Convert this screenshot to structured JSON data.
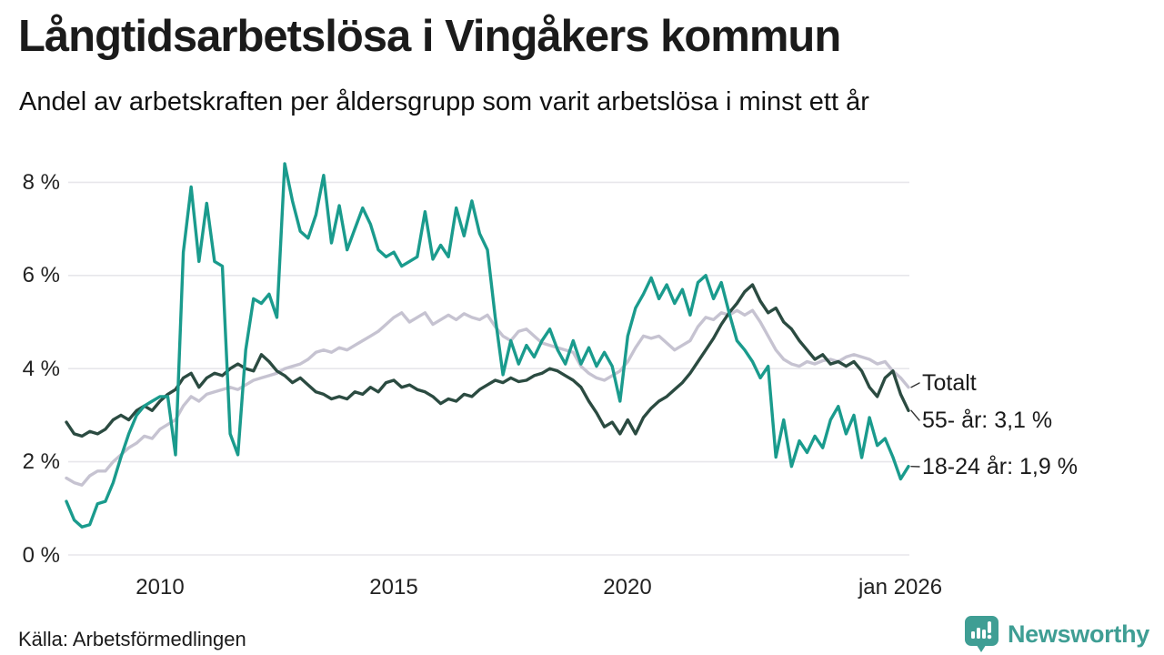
{
  "header": {
    "title": "Långtidsarbetslösa i Vingåkers kommun",
    "subtitle": "Andel av arbetskraften per åldersgrupp som varit arbetslösa i minst ett år"
  },
  "footer": {
    "source": "Källa: Arbetsförmedlingen",
    "brand": "Newsworthy",
    "brand_color": "#3f9e94",
    "logo_icon": "bar-chart-speech-bubble-icon"
  },
  "chart_data": {
    "type": "line",
    "title": "Långtidsarbetslösa i Vingåkers kommun",
    "subtitle": "Andel av arbetskraften per åldersgrupp som varit arbetslösa i minst ett år",
    "x_start": 2008.0,
    "x_end": 2026.08,
    "x_unit": "year (monthly data, sampled bimonthly)",
    "ylim": [
      0,
      8.6
    ],
    "grid": true,
    "grid_color": "#e7e6eb",
    "grid_y_values": [
      0,
      2,
      4,
      6,
      8
    ],
    "y_tick_labels": [
      "8 %",
      "6 %",
      "4 %",
      "2 %",
      "0 %"
    ],
    "x_tick_labels": [
      "2010",
      "2015",
      "2020",
      "jan 2026"
    ],
    "x_tick_years": [
      2010,
      2015,
      2020,
      2026.08
    ],
    "legend_position": "right-end-labels",
    "series": [
      {
        "name": "Totalt",
        "end_label": "Totalt",
        "color": "#c6c3d1",
        "last_value": 3.6,
        "values": [
          1.65,
          1.55,
          1.5,
          1.7,
          1.8,
          1.8,
          2.0,
          2.15,
          2.3,
          2.4,
          2.55,
          2.5,
          2.7,
          2.8,
          2.9,
          3.2,
          3.4,
          3.3,
          3.45,
          3.5,
          3.55,
          3.6,
          3.55,
          3.65,
          3.75,
          3.8,
          3.85,
          3.9,
          4.0,
          4.05,
          4.1,
          4.2,
          4.35,
          4.4,
          4.35,
          4.45,
          4.4,
          4.5,
          4.6,
          4.7,
          4.8,
          4.95,
          5.1,
          5.2,
          5.0,
          5.1,
          5.2,
          4.95,
          5.05,
          5.15,
          5.05,
          5.18,
          5.1,
          5.05,
          5.15,
          4.9,
          4.7,
          4.6,
          4.8,
          4.85,
          4.7,
          4.55,
          4.5,
          4.45,
          4.4,
          4.35,
          4.05,
          3.9,
          3.8,
          3.75,
          3.85,
          3.95,
          4.15,
          4.45,
          4.7,
          4.65,
          4.7,
          4.55,
          4.4,
          4.5,
          4.6,
          4.9,
          5.1,
          5.05,
          5.2,
          5.15,
          5.25,
          5.15,
          5.25,
          5.0,
          4.7,
          4.4,
          4.2,
          4.1,
          4.05,
          4.15,
          4.1,
          4.17,
          4.2,
          4.15,
          4.25,
          4.3,
          4.25,
          4.2,
          4.1,
          4.15,
          3.95,
          3.8,
          3.6
        ]
      },
      {
        "name": "55- år",
        "end_label": "55- år: 3,1 %",
        "color": "#2b4b41",
        "last_value": 3.1,
        "values": [
          2.85,
          2.6,
          2.55,
          2.65,
          2.6,
          2.7,
          2.9,
          3.0,
          2.9,
          3.1,
          3.2,
          3.1,
          3.3,
          3.45,
          3.55,
          3.8,
          3.9,
          3.6,
          3.8,
          3.9,
          3.85,
          4.0,
          4.1,
          4.0,
          3.95,
          4.3,
          4.15,
          3.95,
          3.85,
          3.7,
          3.8,
          3.65,
          3.5,
          3.45,
          3.35,
          3.4,
          3.35,
          3.5,
          3.45,
          3.6,
          3.5,
          3.7,
          3.75,
          3.6,
          3.65,
          3.55,
          3.5,
          3.4,
          3.25,
          3.35,
          3.3,
          3.45,
          3.4,
          3.55,
          3.65,
          3.75,
          3.7,
          3.8,
          3.72,
          3.75,
          3.85,
          3.9,
          4.0,
          3.95,
          3.85,
          3.75,
          3.6,
          3.3,
          3.05,
          2.75,
          2.85,
          2.6,
          2.9,
          2.6,
          2.95,
          3.15,
          3.3,
          3.4,
          3.55,
          3.7,
          3.9,
          4.15,
          4.4,
          4.65,
          4.95,
          5.2,
          5.4,
          5.65,
          5.8,
          5.45,
          5.2,
          5.3,
          5.0,
          4.85,
          4.6,
          4.4,
          4.2,
          4.3,
          4.1,
          4.15,
          4.05,
          4.15,
          3.95,
          3.6,
          3.4,
          3.8,
          3.95,
          3.45,
          3.1
        ]
      },
      {
        "name": "18-24 år",
        "end_label": "18-24 år: 1,9 %",
        "color": "#1a9b8d",
        "last_value": 1.9,
        "values": [
          1.15,
          0.75,
          0.6,
          0.65,
          1.1,
          1.15,
          1.55,
          2.1,
          2.6,
          3.0,
          3.2,
          3.3,
          3.4,
          3.4,
          2.15,
          6.5,
          7.9,
          6.3,
          7.55,
          6.3,
          6.2,
          2.6,
          2.15,
          4.4,
          5.5,
          5.4,
          5.6,
          5.1,
          8.4,
          7.6,
          6.95,
          6.8,
          7.3,
          8.15,
          6.7,
          7.5,
          6.55,
          7.0,
          7.45,
          7.1,
          6.55,
          6.4,
          6.5,
          6.2,
          6.3,
          6.4,
          7.37,
          6.35,
          6.65,
          6.4,
          7.45,
          6.85,
          7.6,
          6.9,
          6.55,
          5.1,
          3.87,
          4.6,
          4.1,
          4.5,
          4.25,
          4.6,
          4.85,
          4.4,
          4.1,
          4.6,
          4.1,
          4.45,
          4.05,
          4.35,
          4.05,
          3.3,
          4.7,
          5.3,
          5.6,
          5.95,
          5.5,
          5.8,
          5.4,
          5.7,
          5.15,
          5.85,
          6.0,
          5.5,
          5.85,
          5.2,
          4.6,
          4.4,
          4.15,
          3.8,
          4.05,
          2.1,
          2.9,
          1.9,
          2.45,
          2.2,
          2.55,
          2.3,
          2.9,
          3.19,
          2.6,
          3.0,
          2.09,
          2.95,
          2.35,
          2.5,
          2.1,
          1.63,
          1.9
        ]
      }
    ]
  }
}
